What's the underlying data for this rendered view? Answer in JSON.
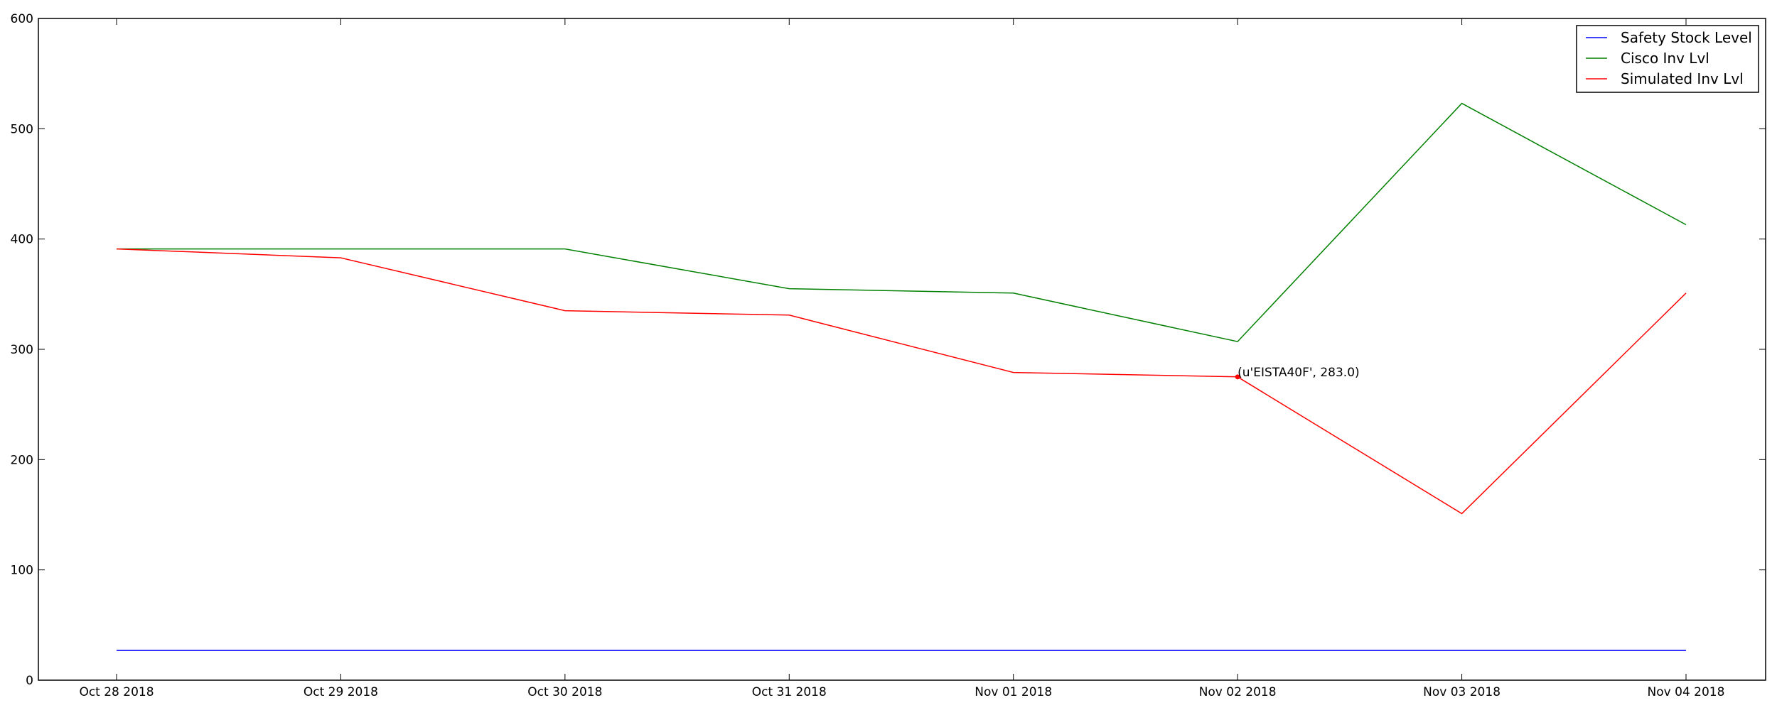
{
  "chart_data": {
    "type": "line",
    "x": [
      "Oct 28 2018",
      "Oct 29 2018",
      "Oct 30 2018",
      "Oct 31 2018",
      "Nov 01 2018",
      "Nov 02 2018",
      "Nov 03 2018",
      "Nov 04 2018"
    ],
    "ylim": [
      0,
      600
    ],
    "yticks": [
      0,
      100,
      200,
      300,
      400,
      500,
      600
    ],
    "grid": false,
    "legend_position": "top-right",
    "series": [
      {
        "name": "Safety Stock Level",
        "color": "#0000ff",
        "values": [
          27,
          27,
          27,
          27,
          27,
          27,
          27,
          27
        ]
      },
      {
        "name": "Cisco Inv Lvl",
        "color": "#008000",
        "values": [
          391,
          391,
          391,
          355,
          351,
          307,
          523,
          413
        ]
      },
      {
        "name": "Simulated Inv Lvl",
        "color": "#ff0000",
        "values": [
          391,
          383,
          335,
          331,
          279,
          275,
          151,
          351
        ]
      }
    ],
    "annotation": {
      "text": "(u'EISTA40F', 283.0)",
      "x": "Nov 02 2018",
      "y": 275,
      "marker_color": "#ff0000"
    }
  }
}
